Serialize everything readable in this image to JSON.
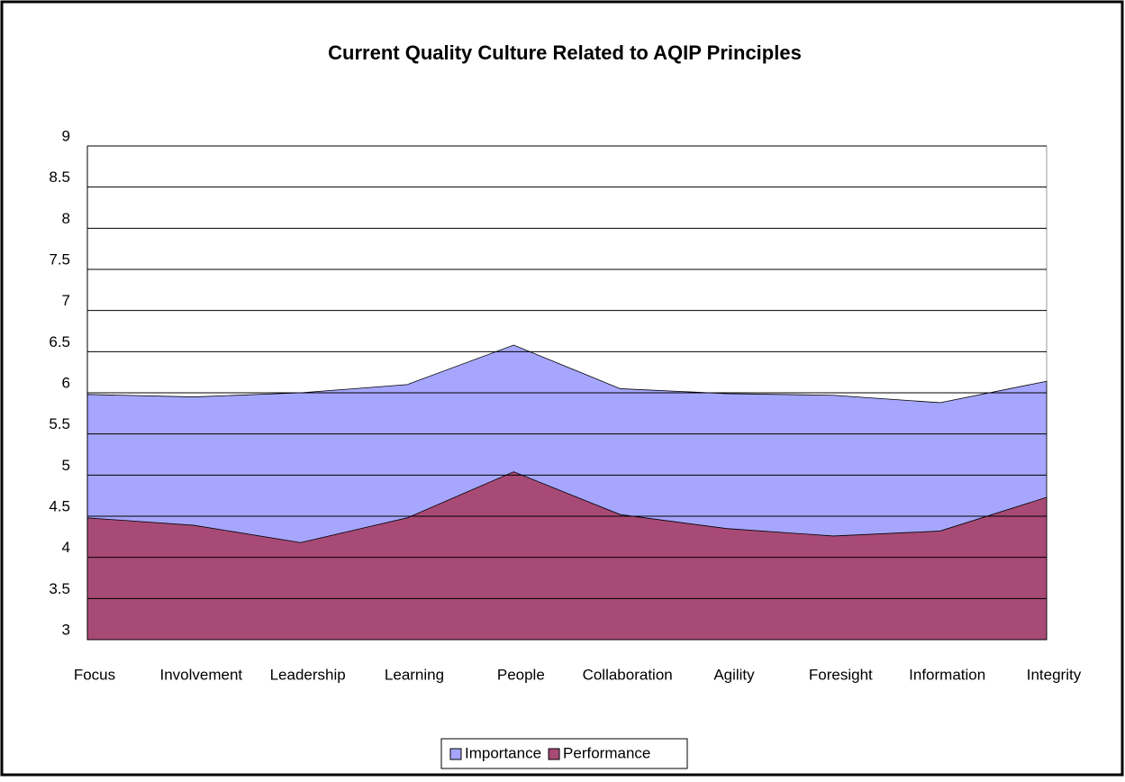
{
  "chart_data": {
    "type": "area",
    "title": "Current Quality Culture Related to AQIP Principles",
    "categories": [
      "Focus",
      "Involvement",
      "Leadership",
      "Learning",
      "People",
      "Collaboration",
      "Agility",
      "Foresight",
      "Information",
      "Integrity"
    ],
    "series": [
      {
        "name": "Importance",
        "color": "#a6a6ff",
        "values": [
          5.98,
          5.95,
          6.0,
          6.1,
          6.58,
          6.05,
          5.99,
          5.97,
          5.88,
          6.14
        ]
      },
      {
        "name": "Performance",
        "color": "#a84a76",
        "values": [
          4.48,
          4.39,
          4.18,
          4.48,
          5.04,
          4.52,
          4.35,
          4.26,
          4.32,
          4.73
        ]
      }
    ],
    "ylim": [
      3,
      9
    ],
    "yticks": [
      3,
      3.5,
      4,
      4.5,
      5,
      5.5,
      6,
      6.5,
      7,
      7.5,
      8,
      8.5,
      9
    ],
    "grid": true,
    "legend": "bottom"
  }
}
